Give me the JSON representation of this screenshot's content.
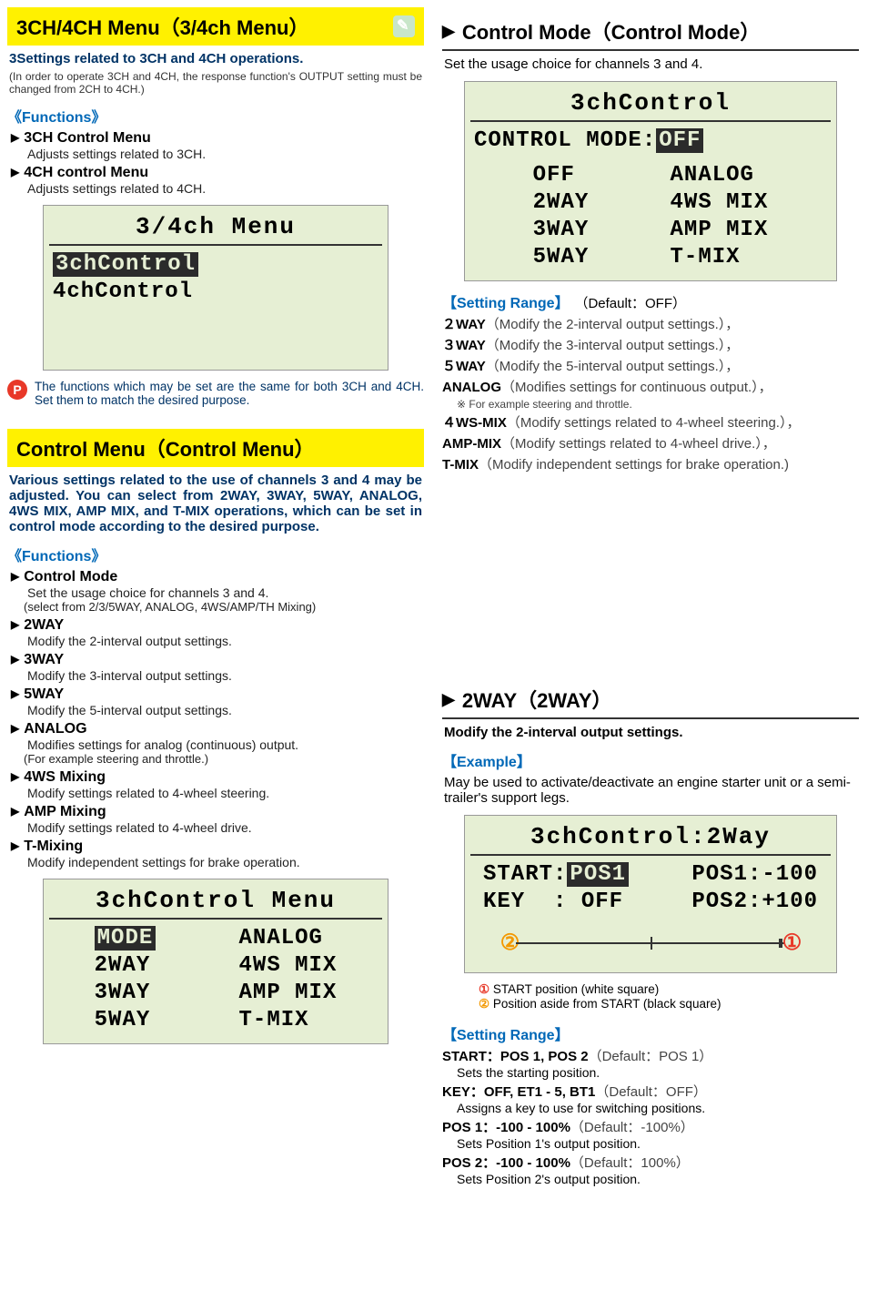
{
  "left": {
    "s1": {
      "title": "3CH/4CH Menu（3/4ch Menu）",
      "intro": "3Settings related to 3CH and 4CH operations.",
      "note": "(In order to operate 3CH and 4CH, the response function's OUTPUT setting must be changed from 2CH to 4CH.)",
      "funcLabel": "《Functions》",
      "items": [
        {
          "t": "3CH Control Menu",
          "d": "Adjusts settings related to 3CH."
        },
        {
          "t": "4CH control Menu",
          "d": "Adjusts settings related to 4CH."
        }
      ],
      "lcd": {
        "title": "3/4ch Menu",
        "row1": "3chControl",
        "row2": "4chControl"
      },
      "tip": "The functions which may be set are the same for both 3CH and 4CH. Set them to match the desired purpose."
    },
    "s2": {
      "title": "Control Menu（Control Menu）",
      "intro": "Various settings related to the use of channels 3 and 4 may be adjusted. You can select from 2WAY, 3WAY, 5WAY, ANALOG, 4WS MIX, AMP MIX, and T-MIX operations, which can be set in control mode according to the desired purpose.",
      "funcLabel": "《Functions》",
      "items": [
        {
          "t": "Control Mode",
          "d": "Set the usage choice for channels 3 and 4.",
          "d2": "(select from 2/3/5WAY, ANALOG, 4WS/AMP/TH Mixing)"
        },
        {
          "t": "2WAY",
          "d": "Modify the 2-interval output settings."
        },
        {
          "t": "3WAY",
          "d": "Modify the 3-interval output settings."
        },
        {
          "t": "5WAY",
          "d": "Modify the 5-interval output settings."
        },
        {
          "t": "ANALOG",
          "d": "Modifies settings for analog (continuous) output.",
          "d2": "(For example steering and throttle.)"
        },
        {
          "t": "4WS Mixing",
          "d": "Modify settings related to 4-wheel steering."
        },
        {
          "t": "AMP Mixing",
          "d": "Modify settings related to 4-wheel drive."
        },
        {
          "t": "T-Mixing",
          "d": "Modify independent settings for brake operation."
        }
      ],
      "lcd": {
        "title": "3chControl Menu",
        "colL": [
          "MODE",
          "2WAY",
          "3WAY",
          "5WAY"
        ],
        "colR": [
          "ANALOG",
          "4WS MIX",
          "AMP MIX",
          "T-MIX"
        ]
      }
    }
  },
  "right": {
    "s1": {
      "title": "Control Mode（Control Mode）",
      "desc": "Set the usage choice for channels 3 and 4.",
      "lcd": {
        "title": "3chControl",
        "line1a": "CONTROL MODE:",
        "line1b": "OFF",
        "colL": [
          "OFF",
          "2WAY",
          "3WAY",
          "5WAY"
        ],
        "colR": [
          "ANALOG",
          "4WS MIX",
          "AMP MIX",
          "T-MIX"
        ]
      },
      "rangeLabel": "【Setting Range】",
      "rangeDefault": "（Default：OFF）",
      "rows": [
        {
          "b": "２WAY",
          "t": "（Modify the 2-interval output settings.），"
        },
        {
          "b": "３WAY",
          "t": "（Modify the 3-interval output settings.），"
        },
        {
          "b": "５WAY",
          "t": "（Modify the 5-interval output settings.），"
        },
        {
          "b": "ANALOG",
          "t": "（Modifies settings for continuous output.），",
          "foot": "※ For example steering and throttle."
        },
        {
          "b": "４WS-MIX",
          "t": "（Modify settings related to 4-wheel steering.），"
        },
        {
          "b": "AMP-MIX",
          "t": "（Modify settings related to 4-wheel drive.），"
        },
        {
          "b": "T-MIX",
          "t": "（Modify independent settings for brake operation.)"
        }
      ]
    },
    "s2": {
      "title": "2WAY（2WAY）",
      "desc": "Modify the 2-interval output settings.",
      "exLabel": "【Example】",
      "exText": "May be used to activate/deactivate an engine starter unit or a semi-trailer's support legs.",
      "lcd": {
        "title": "3chControl:2Way",
        "l1": "START:",
        "l1v": "POS1",
        "l2": "KEY  : OFF",
        "r1": "POS1:-100",
        "r2": "POS2:+100"
      },
      "legend1": "① START position (white square)",
      "legend2": "② Position aside from START (black square)",
      "rangeLabel": "【Setting Range】",
      "rows": [
        {
          "b": "START：POS 1, POS 2",
          "def": "（Default：POS 1）",
          "sub": "Sets the starting position."
        },
        {
          "b": "KEY：OFF, ET1 - 5, BT1",
          "def": "（Default：OFF）",
          "sub": "Assigns a key to use for switching positions."
        },
        {
          "b": "POS 1：-100 - 100%",
          "def": "（Default：-100%）",
          "sub": "Sets Position 1's output position."
        },
        {
          "b": "POS 2：-100 - 100%",
          "def": "（Default：100%）",
          "sub": "Sets Position 2's output position."
        }
      ]
    }
  }
}
